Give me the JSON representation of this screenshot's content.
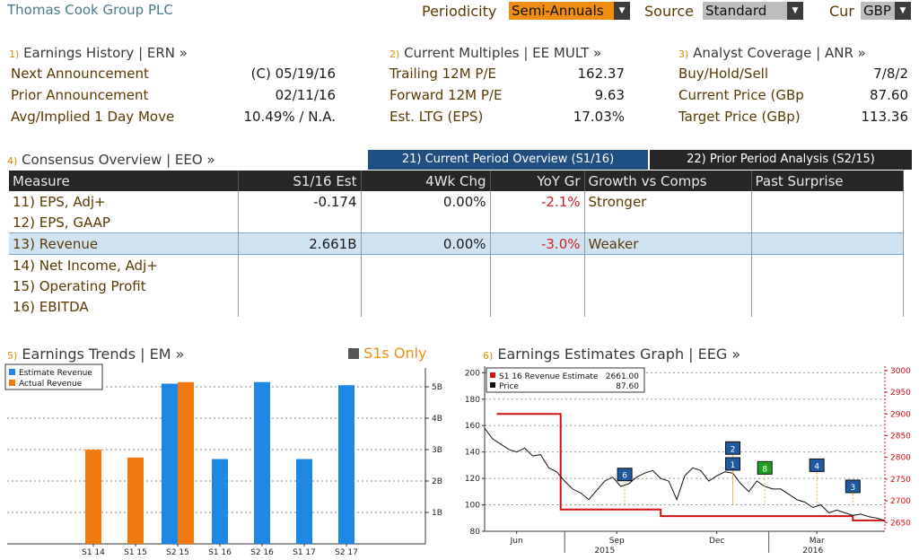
{
  "header": {
    "title": "Thomas Cook Group PLC",
    "periodicity_label": "Periodicity",
    "periodicity_value": "Semi-Annuals",
    "source_label": "Source",
    "source_value": "Standard",
    "cur_label": "Cur",
    "cur_value": "GBP"
  },
  "earnings_history": {
    "num": "1)",
    "title": "Earnings History | ERN »",
    "rows": [
      {
        "label": "Next Announcement",
        "value": "(C)  05/19/16"
      },
      {
        "label": "Prior Announcement",
        "value": "02/11/16"
      },
      {
        "label": "Avg/Implied 1 Day Move",
        "value": "10.49% / N.A."
      }
    ]
  },
  "current_multiples": {
    "num": "2)",
    "title": "Current Multiples | EE MULT »",
    "rows": [
      {
        "label": "Trailing 12M P/E",
        "value": "162.37"
      },
      {
        "label": "Forward 12M P/E",
        "value": "9.63"
      },
      {
        "label": "Est. LTG (EPS)",
        "value": "17.03%"
      }
    ]
  },
  "analyst_coverage": {
    "num": "3)",
    "title": "Analyst Coverage | ANR »",
    "rows": [
      {
        "label": "Buy/Hold/Sell",
        "value": "7/8/2"
      },
      {
        "label": "Current Price (GBp",
        "value": "87.60"
      },
      {
        "label": "Target Price (GBp)",
        "value": "113.36"
      }
    ]
  },
  "consensus": {
    "num": "4)",
    "title": "Consensus Overview | EEO »",
    "tab_current": "21) Current Period Overview (S1/16)",
    "tab_prior": "22) Prior Period Analysis (S2/15)",
    "columns": [
      "Measure",
      "S1/16 Est",
      "4Wk Chg",
      "YoY Gr",
      "Growth vs Comps",
      "Past Surprise"
    ],
    "rows": [
      {
        "num": "11)",
        "measure": "EPS, Adj+",
        "est": "-0.174",
        "chg": "0.00%",
        "yoy": "-2.1%",
        "growth": "Stronger",
        "surprise": ""
      },
      {
        "num": "12)",
        "measure": "EPS, GAAP",
        "est": "",
        "chg": "",
        "yoy": "",
        "growth": "",
        "surprise": ""
      },
      {
        "num": "13)",
        "measure": "Revenue",
        "est": "2.661B",
        "chg": "0.00%",
        "yoy": "-3.0%",
        "growth": "Weaker",
        "surprise": ""
      },
      {
        "num": "14)",
        "measure": "Net Income, Adj+",
        "est": "",
        "chg": "",
        "yoy": "",
        "growth": "",
        "surprise": ""
      },
      {
        "num": "15)",
        "measure": "Operating Profit",
        "est": "",
        "chg": "",
        "yoy": "",
        "growth": "",
        "surprise": ""
      },
      {
        "num": "16)",
        "measure": "EBITDA",
        "est": "",
        "chg": "",
        "yoy": "",
        "growth": "",
        "surprise": ""
      }
    ]
  },
  "earnings_trends": {
    "num": "5)",
    "title": "Earnings Trends | EM »",
    "s1_only": "S1s Only",
    "legend": [
      "Estimate Revenue",
      "Actual Revenue"
    ],
    "colors": {
      "estimate": "#1e88e5",
      "actual": "#f07a10"
    }
  },
  "earnings_estimates": {
    "num": "6)",
    "title": "Earnings Estimates Graph | EEG »",
    "legend_estimate_label": "S1 16 Revenue Estimate",
    "legend_estimate_value": "2661.00",
    "legend_price_label": "Price",
    "legend_price_value": "87.60",
    "colors": {
      "estimate": "#d01010",
      "price": "#111111",
      "event": "#1e5aa0",
      "event_green": "#20a020"
    }
  },
  "chart_data": [
    {
      "type": "bar",
      "categories": [
        "S1 14",
        "S1 15",
        "S2 15",
        "S1 16",
        "S2 16",
        "S1 17",
        "S2 17"
      ],
      "series": [
        {
          "name": "Estimate Revenue",
          "values": [
            null,
            null,
            5.1,
            2.7,
            5.15,
            2.7,
            5.05
          ]
        },
        {
          "name": "Actual Revenue",
          "values": [
            3.0,
            2.75,
            5.15,
            null,
            null,
            null,
            null
          ]
        }
      ],
      "ylim": [
        0,
        5.6
      ],
      "yticks": [
        "1B",
        "2B",
        "3B",
        "4B",
        "5B"
      ],
      "ytick_values": [
        1,
        2,
        3,
        4,
        5
      ],
      "grid": true,
      "legend": "top-left"
    },
    {
      "type": "line",
      "x_ticks": [
        "Jun",
        "Sep",
        "Dec",
        "Mar"
      ],
      "x_years": [
        "2015",
        "2016"
      ],
      "y_left_ticks": [
        80,
        100,
        120,
        140,
        160,
        180,
        200
      ],
      "y_left_lim": [
        80,
        205
      ],
      "y_right_ticks": [
        2650,
        2700,
        2750,
        2800,
        2850,
        2900,
        2950,
        3000
      ],
      "y_right_lim": [
        2630,
        3010
      ],
      "x_range": [
        0,
        100
      ],
      "series": [
        {
          "name": "S1 16 Revenue Estimate",
          "axis": "right",
          "x": [
            3,
            19,
            19,
            44,
            44,
            68,
            68,
            92,
            92,
            100
          ],
          "values": [
            2900,
            2900,
            2680,
            2680,
            2665,
            2665,
            2665,
            2665,
            2655,
            2655
          ]
        },
        {
          "name": "Price",
          "axis": "left",
          "x": [
            0,
            2,
            4,
            6,
            8,
            10,
            12,
            14,
            16,
            18,
            20,
            22,
            24,
            26,
            28,
            30,
            32,
            34,
            36,
            38,
            40,
            42,
            44,
            46,
            48,
            50,
            52,
            54,
            56,
            58,
            60,
            62,
            64,
            66,
            68,
            70,
            72,
            74,
            76,
            78,
            80,
            82,
            84,
            86,
            88,
            90,
            92,
            94,
            96,
            98,
            100
          ],
          "values": [
            158,
            150,
            146,
            142,
            140,
            143,
            137,
            138,
            128,
            125,
            118,
            112,
            109,
            104,
            111,
            118,
            121,
            114,
            116,
            121,
            124,
            126,
            120,
            118,
            104,
            122,
            128,
            126,
            118,
            122,
            125,
            124,
            116,
            110,
            118,
            114,
            112,
            112,
            108,
            104,
            102,
            98,
            100,
            94,
            96,
            94,
            92,
            93,
            91,
            90,
            88
          ]
        }
      ],
      "events": [
        {
          "x": 35,
          "value": 123,
          "label": "6"
        },
        {
          "x": 62,
          "value": 143,
          "label": "2"
        },
        {
          "x": 62,
          "value": 131,
          "label": "1"
        },
        {
          "x": 70,
          "value": 128,
          "label": "8"
        },
        {
          "x": 83,
          "value": 130,
          "label": "4"
        },
        {
          "x": 92,
          "value": 114,
          "label": "3"
        }
      ],
      "grid": true,
      "legend": "top-left"
    }
  ]
}
